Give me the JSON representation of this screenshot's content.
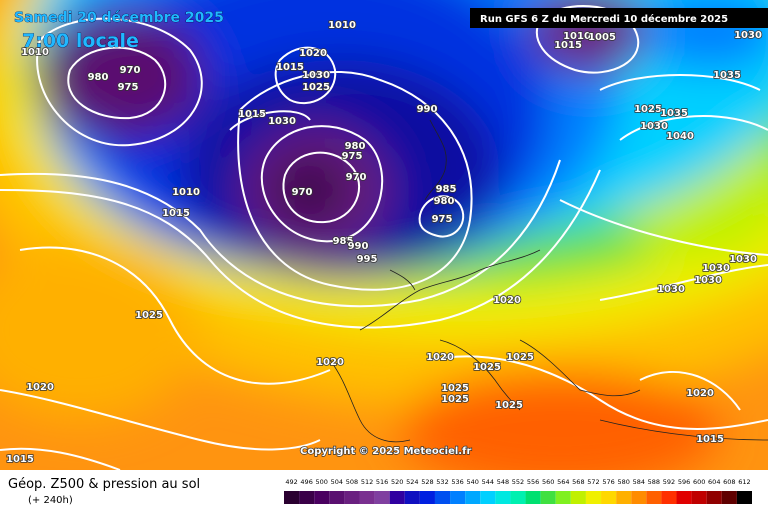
{
  "header": {
    "date": "Samedi 20 décembre 2025",
    "time": "7:00 locale",
    "run": "Run GFS 6 Z du Mercredi 10 décembre 2025"
  },
  "copyright": "Copyright © 2025 Meteociel.fr",
  "footer": {
    "title": "Géop. Z500 & pression au sol",
    "lead": "(+ 240h)"
  },
  "pressure_labels": [
    "1010",
    "970",
    "975",
    "980",
    "1010",
    "1020",
    "1015",
    "1030",
    "1025",
    "1015",
    "1030",
    "990",
    "980",
    "975",
    "970",
    "970",
    "985",
    "980",
    "975",
    "985",
    "990",
    "995",
    "1010",
    "1015",
    "1025",
    "1020",
    "1020",
    "1025",
    "1025",
    "1025",
    "1025",
    "1025",
    "1020",
    "1030",
    "1030",
    "1030",
    "1030",
    "1020",
    "1015",
    "1015",
    "1020",
    "1010",
    "1005",
    "1015",
    "1030",
    "1035",
    "1025",
    "1035",
    "1030",
    "1040"
  ],
  "colorbar": {
    "labels": [
      492,
      496,
      500,
      504,
      508,
      512,
      516,
      520,
      524,
      528,
      532,
      536,
      540,
      544,
      548,
      552,
      556,
      560,
      564,
      568,
      572,
      576,
      580,
      584,
      588,
      592,
      596,
      600,
      604,
      608,
      612
    ],
    "colors": [
      "#2a0030",
      "#3a0048",
      "#4a0060",
      "#5a1070",
      "#6a2080",
      "#7a3090",
      "#8040a0",
      "#3000a0",
      "#1010c0",
      "#0020e0",
      "#0050f0",
      "#0080ff",
      "#00a8ff",
      "#00d0ff",
      "#00e8e0",
      "#00f0b0",
      "#00e070",
      "#40e040",
      "#80f020",
      "#c0f000",
      "#f0f000",
      "#ffd800",
      "#ffb000",
      "#ff8c00",
      "#ff6000",
      "#ff3000",
      "#e00000",
      "#c00000",
      "#900000",
      "#600000",
      "#000000"
    ]
  }
}
